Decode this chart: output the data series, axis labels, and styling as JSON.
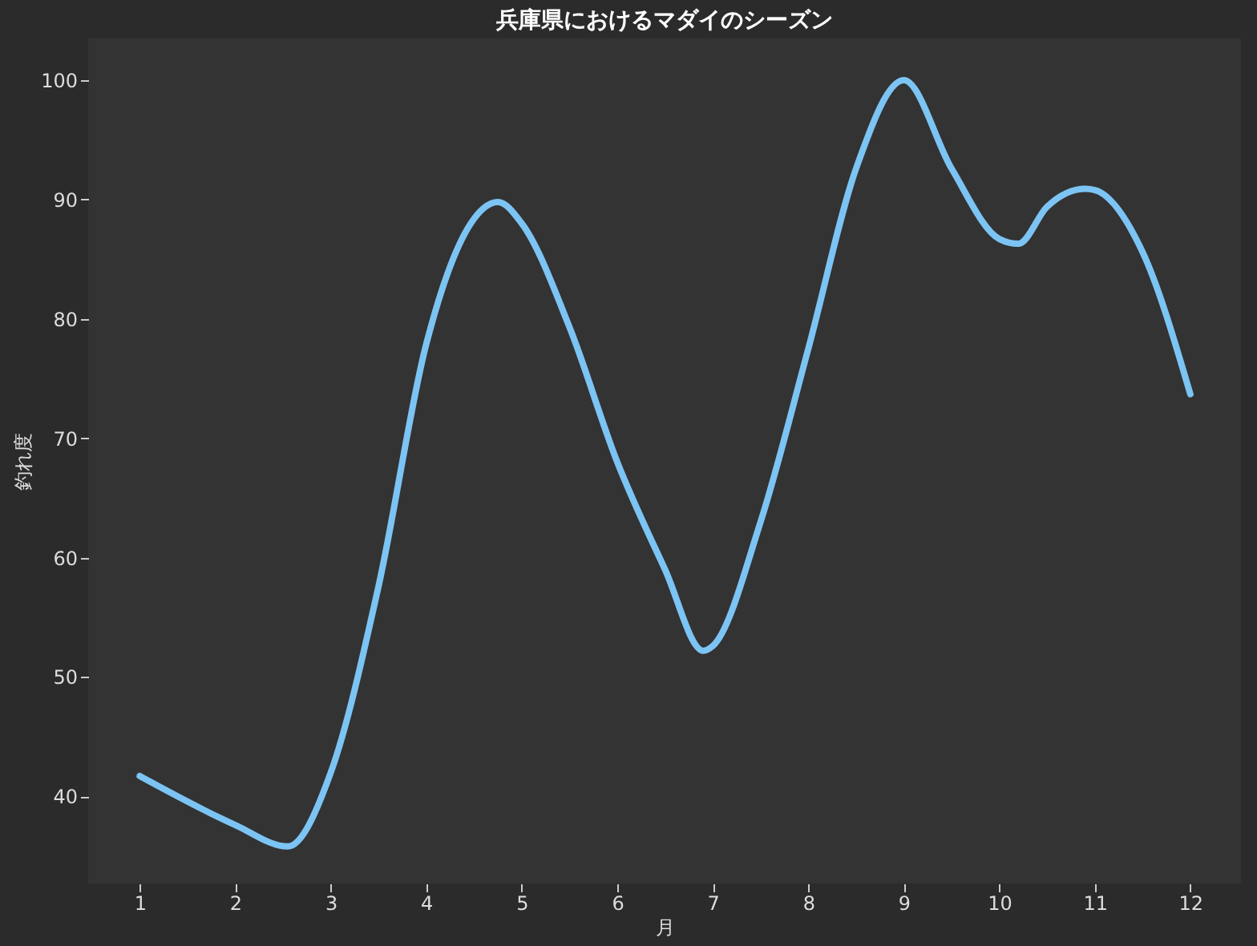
{
  "chart_data": {
    "type": "line",
    "title": "兵庫県におけるマダイのシーズン",
    "xlabel": "月",
    "ylabel": "釣れ度",
    "x": [
      1,
      2,
      2.55,
      3,
      3.5,
      4,
      4.5,
      4.75,
      5,
      5.5,
      6,
      6.5,
      6.9,
      7,
      7.5,
      8,
      8.5,
      9,
      9.5,
      10,
      10.2,
      10.5,
      10.9,
      11,
      11.5,
      12
    ],
    "series": [
      {
        "color": "#7cc4f4",
        "values": [
          41.7,
          37.6,
          35.8,
          42,
          57.6,
          77.9,
          88.4,
          89.8,
          88,
          79.3,
          68,
          59,
          52.2,
          52.6,
          63,
          77.5,
          92.6,
          100,
          92.6,
          86.7,
          86.3,
          89.4,
          90.9,
          90.8,
          85.6,
          73.7
        ]
      }
    ],
    "xlim": [
      0.46,
      12.53
    ],
    "xticks": [
      1,
      2,
      3,
      4,
      5,
      6,
      7,
      8,
      9,
      10,
      11,
      12
    ],
    "ylim": [
      32.7,
      103.5
    ],
    "yticks": [
      40,
      50,
      60,
      70,
      80,
      90,
      100
    ],
    "grid": false,
    "legend": false,
    "marker": "none",
    "line_style": "solid"
  }
}
